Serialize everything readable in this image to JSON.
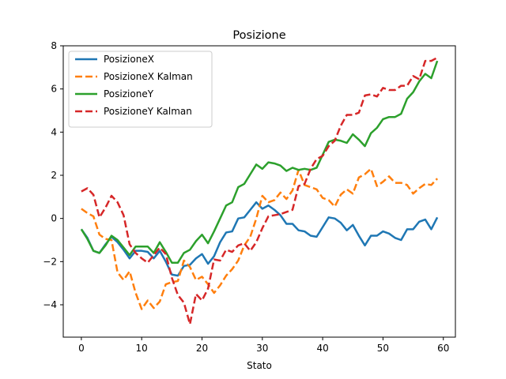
{
  "chart_data": {
    "type": "line",
    "title": "Posizione",
    "xlabel": "Stato",
    "ylabel": "",
    "xlim": [
      -3,
      62
    ],
    "ylim": [
      -5.5,
      8
    ],
    "xticks": [
      0,
      10,
      20,
      30,
      40,
      50,
      60
    ],
    "yticks": [
      -4,
      -2,
      0,
      2,
      4,
      6,
      8
    ],
    "grid": false,
    "legend_position": "top-left",
    "series": [
      {
        "name": "PosizioneX",
        "color": "#1f77b4",
        "dash": "solid",
        "values": [
          -0.5,
          -0.9,
          -1.5,
          -1.6,
          -1.2,
          -0.85,
          -1.1,
          -1.45,
          -1.85,
          -1.5,
          -1.5,
          -1.55,
          -1.85,
          -1.5,
          -2.0,
          -2.6,
          -2.65,
          -2.2,
          -2.15,
          -1.85,
          -1.65,
          -2.1,
          -1.75,
          -1.1,
          -0.65,
          -0.6,
          0.0,
          0.05,
          0.4,
          0.75,
          0.45,
          0.6,
          0.4,
          0.15,
          -0.25,
          -0.25,
          -0.55,
          -0.6,
          -0.8,
          -0.85,
          -0.4,
          0.05,
          0.0,
          -0.2,
          -0.55,
          -0.3,
          -0.8,
          -1.25,
          -0.8,
          -0.8,
          -0.6,
          -0.7,
          -0.9,
          -1.0,
          -0.5,
          -0.5,
          -0.15,
          -0.05,
          -0.5,
          0.05
        ]
      },
      {
        "name": "PosizioneX Kalman",
        "color": "#ff7f0e",
        "dash": "dashed",
        "values": [
          0.45,
          0.25,
          0.1,
          -0.75,
          -0.95,
          -1.0,
          -2.5,
          -2.85,
          -2.45,
          -3.45,
          -4.2,
          -3.8,
          -4.15,
          -3.85,
          -3.05,
          -2.95,
          -2.9,
          -1.95,
          -2.25,
          -2.85,
          -2.7,
          -3.05,
          -3.45,
          -3.1,
          -2.65,
          -2.35,
          -1.95,
          -1.25,
          -0.85,
          0.0,
          1.05,
          0.75,
          0.85,
          1.2,
          0.9,
          1.3,
          2.25,
          1.55,
          1.45,
          1.35,
          0.95,
          0.85,
          0.55,
          1.1,
          1.35,
          1.15,
          1.9,
          2.05,
          2.3,
          1.5,
          1.7,
          1.95,
          1.65,
          1.65,
          1.55,
          1.15,
          1.4,
          1.6,
          1.55,
          1.85
        ]
      },
      {
        "name": "PosizioneY",
        "color": "#2ca02c",
        "dash": "solid",
        "values": [
          -0.5,
          -0.95,
          -1.5,
          -1.6,
          -1.25,
          -0.8,
          -1.0,
          -1.35,
          -1.7,
          -1.3,
          -1.3,
          -1.3,
          -1.6,
          -1.1,
          -1.55,
          -2.05,
          -2.05,
          -1.6,
          -1.45,
          -1.05,
          -0.75,
          -1.15,
          -0.6,
          0.0,
          0.6,
          0.75,
          1.45,
          1.6,
          2.05,
          2.5,
          2.3,
          2.6,
          2.55,
          2.45,
          2.2,
          2.35,
          2.25,
          2.3,
          2.25,
          2.35,
          2.95,
          3.55,
          3.65,
          3.6,
          3.5,
          3.9,
          3.65,
          3.35,
          3.95,
          4.2,
          4.6,
          4.7,
          4.7,
          4.85,
          5.55,
          5.85,
          6.35,
          6.7,
          6.5,
          7.3
        ]
      },
      {
        "name": "PosizioneY Kalman",
        "color": "#d62728",
        "dash": "dashed",
        "values": [
          1.25,
          1.4,
          1.1,
          0.05,
          0.5,
          1.05,
          0.75,
          0.15,
          -1.2,
          -1.6,
          -1.85,
          -2.05,
          -1.7,
          -1.35,
          -1.65,
          -2.75,
          -3.55,
          -3.9,
          -4.9,
          -3.5,
          -3.8,
          -3.25,
          -1.9,
          -1.95,
          -1.45,
          -1.55,
          -1.25,
          -1.15,
          -1.5,
          -1.1,
          -0.45,
          0.1,
          0.15,
          0.2,
          0.3,
          0.4,
          1.5,
          1.6,
          2.3,
          2.75,
          2.9,
          3.35,
          3.6,
          4.3,
          4.8,
          4.8,
          4.9,
          5.7,
          5.75,
          5.65,
          6.05,
          5.95,
          5.95,
          6.15,
          6.15,
          6.6,
          6.45,
          7.3,
          7.3,
          7.45
        ]
      }
    ]
  }
}
